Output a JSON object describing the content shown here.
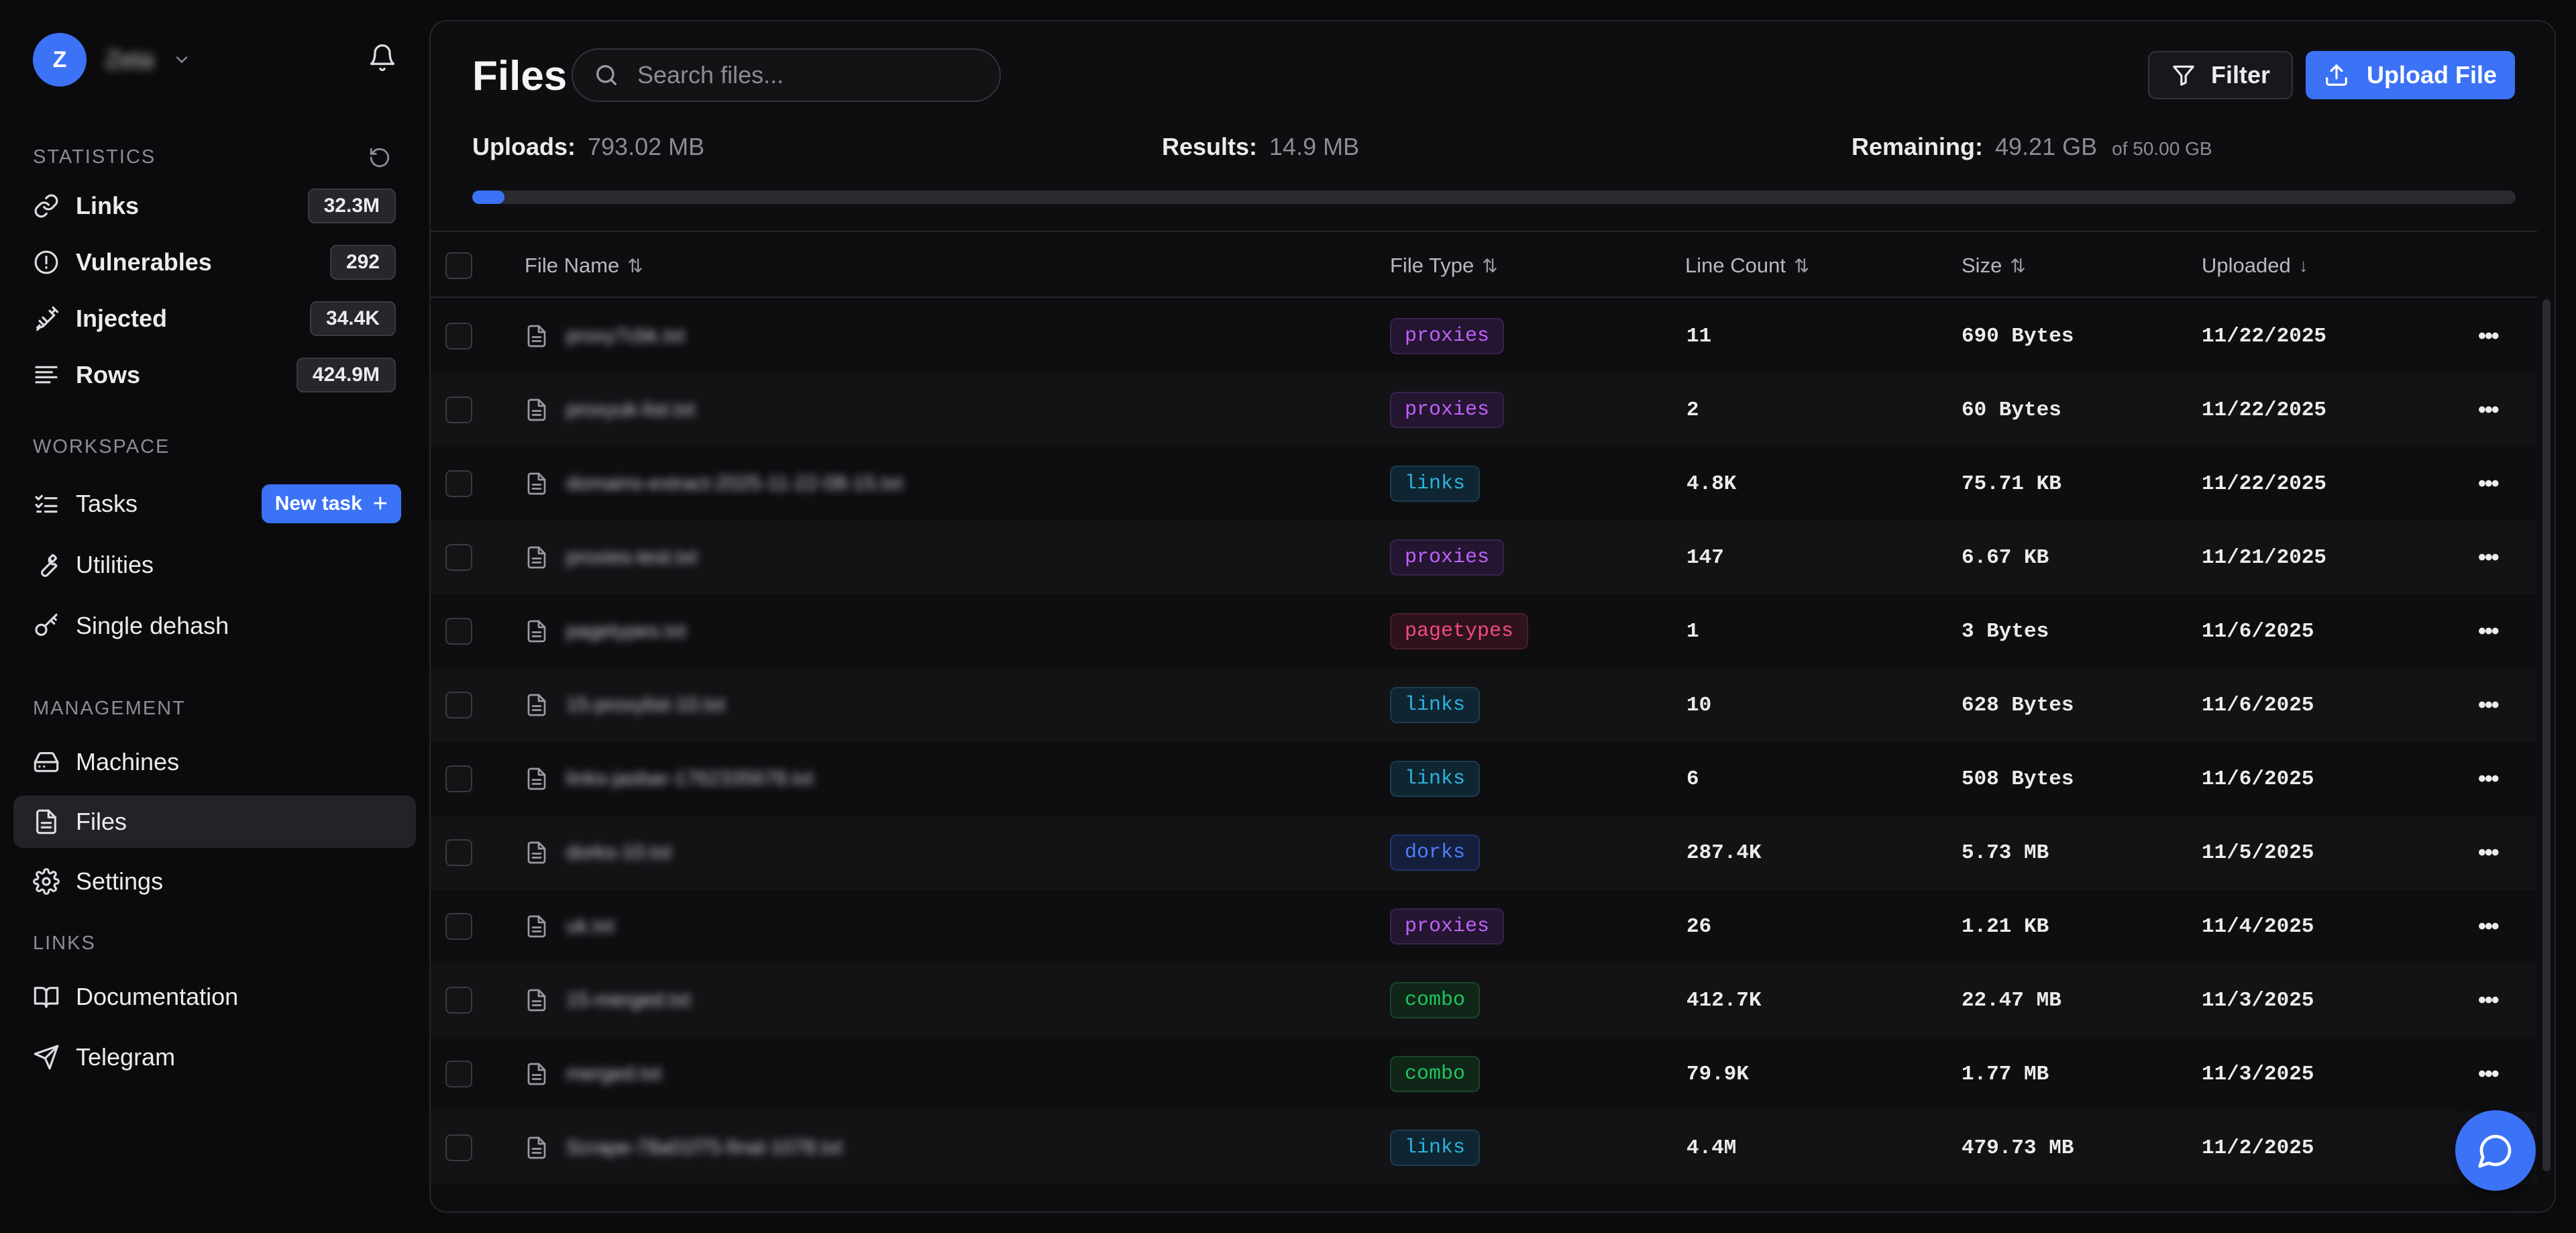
{
  "user": {
    "initial": "Z",
    "name": "Zeta"
  },
  "sidebar": {
    "statistics_label": "STATISTICS",
    "stats": [
      {
        "id": "links",
        "label": "Links",
        "count": "32.3M",
        "icon": "link-icon"
      },
      {
        "id": "vulnerables",
        "label": "Vulnerables",
        "count": "292",
        "icon": "alert-circle-icon"
      },
      {
        "id": "injected",
        "label": "Injected",
        "count": "34.4K",
        "icon": "syringe-icon"
      },
      {
        "id": "rows",
        "label": "Rows",
        "count": "424.9M",
        "icon": "rows-icon"
      }
    ],
    "workspace_label": "WORKSPACE",
    "workspace": [
      {
        "id": "tasks",
        "label": "Tasks",
        "icon": "list-check-icon"
      },
      {
        "id": "utilities",
        "label": "Utilities",
        "icon": "wrench-icon"
      },
      {
        "id": "single-dehash",
        "label": "Single dehash",
        "icon": "key-icon"
      }
    ],
    "new_task_label": "New task",
    "management_label": "MANAGEMENT",
    "management": [
      {
        "id": "machines",
        "label": "Machines",
        "icon": "hard-drive-icon"
      },
      {
        "id": "files",
        "label": "Files",
        "icon": "file-icon",
        "active": true
      },
      {
        "id": "settings",
        "label": "Settings",
        "icon": "gear-icon"
      }
    ],
    "links_label": "LINKS",
    "links": [
      {
        "id": "documentation",
        "label": "Documentation",
        "icon": "book-icon"
      },
      {
        "id": "telegram",
        "label": "Telegram",
        "icon": "send-icon"
      }
    ]
  },
  "main": {
    "title": "Files",
    "search_placeholder": "Search files...",
    "filter_label": "Filter",
    "upload_label": "Upload File",
    "stats": {
      "uploads_label": "Uploads:",
      "uploads_value": "793.02 MB",
      "results_label": "Results:",
      "results_value": "14.9 MB",
      "remaining_label": "Remaining:",
      "remaining_value": "49.21 GB",
      "remaining_of": "of 50.00 GB"
    },
    "storage_used_fraction": 0.0158,
    "columns": {
      "name": "File Name",
      "type": "File Type",
      "lines": "Line Count",
      "size": "Size",
      "uploaded": "Uploaded"
    },
    "sort_glyph": "⇅",
    "sort_desc_glyph": "↓",
    "rows": [
      {
        "name": "proxy7cbk.txt",
        "type": "proxies",
        "lines": "11",
        "size": "690 Bytes",
        "uploaded": "11/22/2025"
      },
      {
        "name": "proxyuk-list.txt",
        "type": "proxies",
        "lines": "2",
        "size": "60 Bytes",
        "uploaded": "11/22/2025"
      },
      {
        "name": "domains-extract-2025-11-22-08-15.txt",
        "type": "links",
        "lines": "4.8K",
        "size": "75.71 KB",
        "uploaded": "11/22/2025"
      },
      {
        "name": "proxies-test.txt",
        "type": "proxies",
        "lines": "147",
        "size": "6.67 KB",
        "uploaded": "11/21/2025"
      },
      {
        "name": "pagetypes.txt",
        "type": "pagetypes",
        "lines": "1",
        "size": "3 Bytes",
        "uploaded": "11/6/2025"
      },
      {
        "name": "15-proxylist-10.txt",
        "type": "links",
        "lines": "10",
        "size": "628 Bytes",
        "uploaded": "11/6/2025"
      },
      {
        "name": "links-jasbar-1762335678.txt",
        "type": "links",
        "lines": "6",
        "size": "508 Bytes",
        "uploaded": "11/6/2025"
      },
      {
        "name": "dorks-10.txt",
        "type": "dorks",
        "lines": "287.4K",
        "size": "5.73 MB",
        "uploaded": "11/5/2025"
      },
      {
        "name": "uk.txt",
        "type": "proxies",
        "lines": "26",
        "size": "1.21 KB",
        "uploaded": "11/4/2025"
      },
      {
        "name": "15-merged.txt",
        "type": "combo",
        "lines": "412.7K",
        "size": "22.47 MB",
        "uploaded": "11/3/2025"
      },
      {
        "name": "merged.txt",
        "type": "combo",
        "lines": "79.9K",
        "size": "1.77 MB",
        "uploaded": "11/3/2025"
      },
      {
        "name": "Scrape-78a01f75-final-1078.txt",
        "type": "links",
        "lines": "4.4M",
        "size": "479.73 MB",
        "uploaded": "11/2/2025"
      }
    ]
  }
}
